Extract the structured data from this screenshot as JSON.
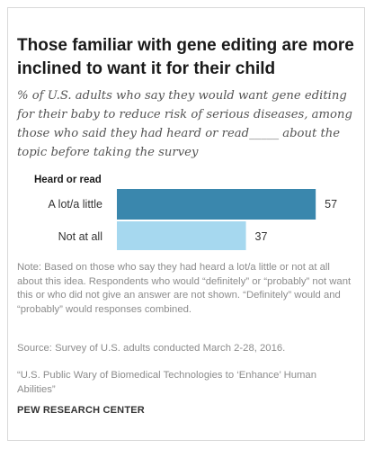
{
  "title": "Those familiar with gene editing are more inclined to want it for their child",
  "subtitle": "% of U.S. adults who say they would want gene editing for their baby to reduce risk of serious diseases, among those who said they had heard or read_____ about the topic before taking the survey",
  "note": "Note: Based on those who say they had heard a lot/a little or not at all about this idea. Respondents who would “definitely” or “probably” not want this or who did not give an answer are not shown. “Definitely” would and “probably” would responses combined.",
  "source": "Source: Survey of U.S. adults conducted March 2-28, 2016.",
  "report": "“U.S. Public Wary of Biomedical Technologies to ‘Enhance’ Human Abilities”",
  "brand": "PEW RESEARCH CENTER",
  "colors": {
    "primary_bar": "#3a87ad",
    "secondary_bar": "#a6d8ef"
  },
  "chart_data": {
    "type": "bar",
    "orientation": "horizontal",
    "group_label": "Heard or read",
    "categories": [
      "A lot/a little",
      "Not at all"
    ],
    "values": [
      57,
      37
    ],
    "xlim": [
      0,
      100
    ],
    "grid": false,
    "legend": "none"
  }
}
